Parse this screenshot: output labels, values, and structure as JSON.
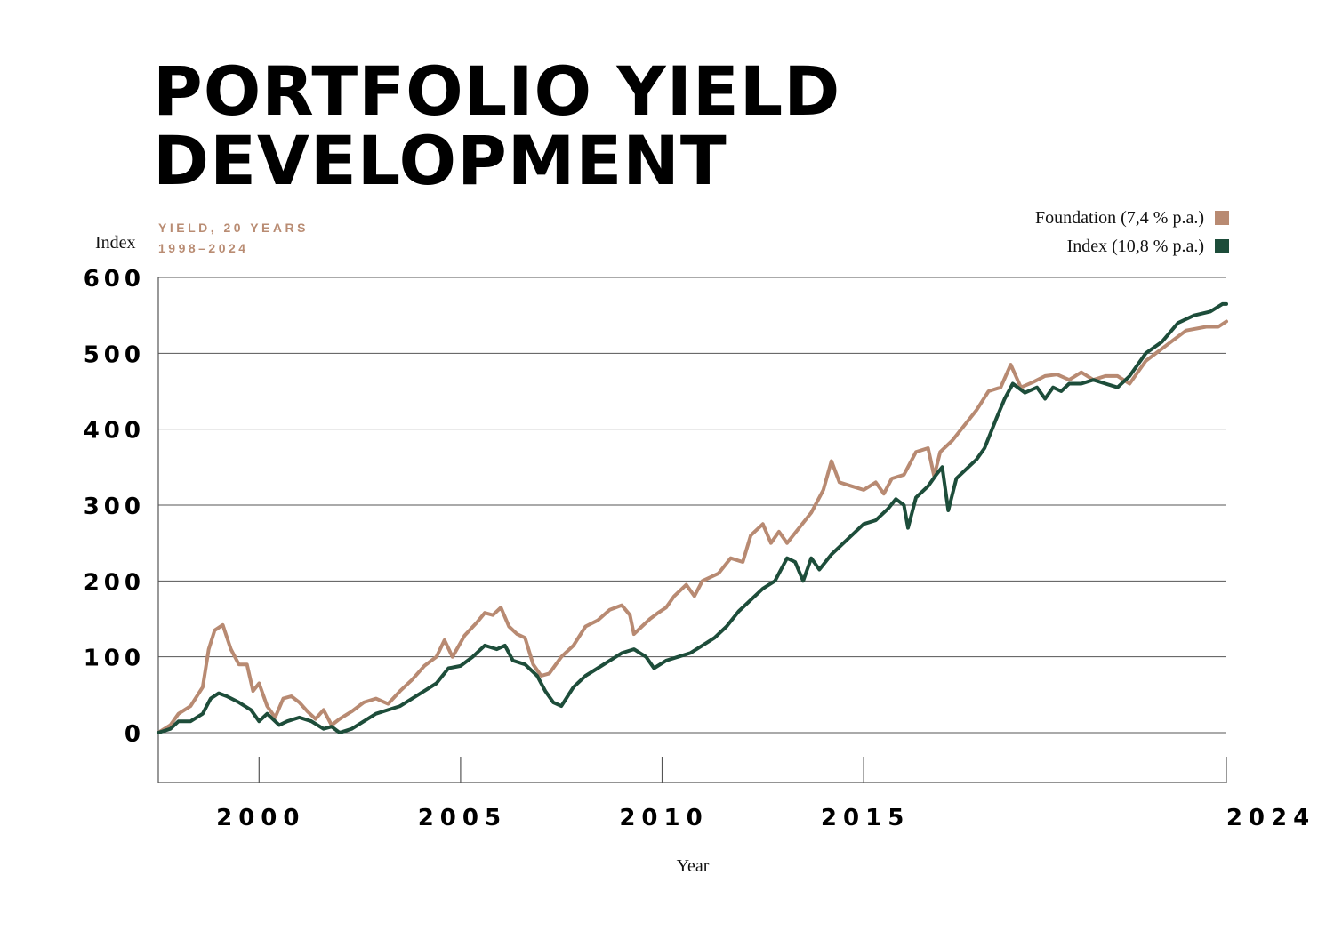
{
  "header": {
    "title_line1": "PORTFOLIO YIELD",
    "title_line2": "DEVELOPMENT",
    "subtitle_line1": "YIELD, 20 YEARS",
    "subtitle_line2": "1998–2024"
  },
  "colors": {
    "foundation": "#b88a72",
    "index": "#1d4d3a",
    "accent": "#b98c73"
  },
  "chart_data": {
    "type": "line",
    "title": "PORTFOLIO YIELD DEVELOPMENT",
    "subtitle": "YIELD, 20 YEARS 1998–2024",
    "ylabel": "Index",
    "xlabel": "Year",
    "ylim": [
      0,
      600
    ],
    "xlim": [
      1997.5,
      2024
    ],
    "yticks": [
      0,
      100,
      200,
      300,
      400,
      500,
      600
    ],
    "xticks": [
      2000,
      2005,
      2010,
      2015,
      2024
    ],
    "grid": true,
    "legend_position": "top-right",
    "series": [
      {
        "name": "Foundation (7,4 % p.a.)",
        "color": "#b88a72",
        "points": [
          [
            1997.5,
            0
          ],
          [
            1997.8,
            10
          ],
          [
            1998.0,
            25
          ],
          [
            1998.3,
            35
          ],
          [
            1998.6,
            60
          ],
          [
            1998.75,
            110
          ],
          [
            1998.9,
            135
          ],
          [
            1999.1,
            142
          ],
          [
            1999.3,
            110
          ],
          [
            1999.5,
            90
          ],
          [
            1999.7,
            90
          ],
          [
            1999.85,
            55
          ],
          [
            2000.0,
            65
          ],
          [
            2000.2,
            35
          ],
          [
            2000.4,
            20
          ],
          [
            2000.6,
            45
          ],
          [
            2000.8,
            48
          ],
          [
            2001.0,
            40
          ],
          [
            2001.2,
            28
          ],
          [
            2001.4,
            18
          ],
          [
            2001.6,
            30
          ],
          [
            2001.8,
            10
          ],
          [
            2002.0,
            18
          ],
          [
            2002.3,
            28
          ],
          [
            2002.6,
            40
          ],
          [
            2002.9,
            45
          ],
          [
            2003.2,
            38
          ],
          [
            2003.5,
            55
          ],
          [
            2003.8,
            70
          ],
          [
            2004.1,
            88
          ],
          [
            2004.4,
            100
          ],
          [
            2004.6,
            122
          ],
          [
            2004.8,
            100
          ],
          [
            2005.1,
            128
          ],
          [
            2005.4,
            145
          ],
          [
            2005.6,
            158
          ],
          [
            2005.8,
            155
          ],
          [
            2006.0,
            165
          ],
          [
            2006.2,
            140
          ],
          [
            2006.4,
            130
          ],
          [
            2006.6,
            125
          ],
          [
            2006.8,
            90
          ],
          [
            2007.0,
            75
          ],
          [
            2007.2,
            78
          ],
          [
            2007.5,
            100
          ],
          [
            2007.8,
            115
          ],
          [
            2008.1,
            140
          ],
          [
            2008.4,
            148
          ],
          [
            2008.7,
            162
          ],
          [
            2009.0,
            168
          ],
          [
            2009.2,
            155
          ],
          [
            2009.3,
            130
          ],
          [
            2009.5,
            140
          ],
          [
            2009.7,
            150
          ],
          [
            2009.9,
            158
          ],
          [
            2010.1,
            165
          ],
          [
            2010.3,
            180
          ],
          [
            2010.6,
            195
          ],
          [
            2010.8,
            180
          ],
          [
            2011.0,
            200
          ],
          [
            2011.2,
            205
          ],
          [
            2011.4,
            210
          ],
          [
            2011.7,
            230
          ],
          [
            2012.0,
            225
          ],
          [
            2012.2,
            260
          ],
          [
            2012.5,
            275
          ],
          [
            2012.7,
            250
          ],
          [
            2012.9,
            265
          ],
          [
            2013.1,
            250
          ],
          [
            2013.4,
            270
          ],
          [
            2013.7,
            290
          ],
          [
            2014.0,
            320
          ],
          [
            2014.2,
            358
          ],
          [
            2014.4,
            330
          ],
          [
            2014.7,
            325
          ],
          [
            2015.0,
            320
          ],
          [
            2015.3,
            330
          ],
          [
            2015.5,
            315
          ],
          [
            2015.7,
            335
          ],
          [
            2016.0,
            340
          ],
          [
            2016.3,
            370
          ],
          [
            2016.6,
            375
          ],
          [
            2016.75,
            338
          ],
          [
            2016.9,
            370
          ],
          [
            2017.2,
            385
          ],
          [
            2017.5,
            405
          ],
          [
            2017.8,
            425
          ],
          [
            2018.1,
            450
          ],
          [
            2018.4,
            455
          ],
          [
            2018.65,
            485
          ],
          [
            2018.9,
            455
          ],
          [
            2019.2,
            462
          ],
          [
            2019.5,
            470
          ],
          [
            2019.8,
            472
          ],
          [
            2020.1,
            465
          ],
          [
            2020.4,
            475
          ],
          [
            2020.7,
            465
          ],
          [
            2021.0,
            470
          ],
          [
            2021.3,
            470
          ],
          [
            2021.6,
            460
          ],
          [
            2022.0,
            490
          ],
          [
            2022.5,
            510
          ],
          [
            2023.0,
            530
          ],
          [
            2023.5,
            535
          ],
          [
            2023.8,
            535
          ],
          [
            2024.0,
            542
          ]
        ]
      },
      {
        "name": "Index (10,8 % p.a.)",
        "color": "#1d4d3a",
        "points": [
          [
            1997.5,
            0
          ],
          [
            1997.8,
            5
          ],
          [
            1998.0,
            15
          ],
          [
            1998.3,
            15
          ],
          [
            1998.6,
            25
          ],
          [
            1998.8,
            45
          ],
          [
            1999.0,
            52
          ],
          [
            1999.2,
            48
          ],
          [
            1999.5,
            40
          ],
          [
            1999.8,
            30
          ],
          [
            2000.0,
            15
          ],
          [
            2000.2,
            25
          ],
          [
            2000.5,
            10
          ],
          [
            2000.7,
            15
          ],
          [
            2001.0,
            20
          ],
          [
            2001.3,
            15
          ],
          [
            2001.6,
            5
          ],
          [
            2001.8,
            8
          ],
          [
            2002.0,
            0
          ],
          [
            2002.3,
            5
          ],
          [
            2002.6,
            15
          ],
          [
            2002.9,
            25
          ],
          [
            2003.2,
            30
          ],
          [
            2003.5,
            35
          ],
          [
            2003.8,
            45
          ],
          [
            2004.1,
            55
          ],
          [
            2004.4,
            65
          ],
          [
            2004.7,
            85
          ],
          [
            2005.0,
            88
          ],
          [
            2005.3,
            100
          ],
          [
            2005.6,
            115
          ],
          [
            2005.9,
            110
          ],
          [
            2006.1,
            115
          ],
          [
            2006.3,
            95
          ],
          [
            2006.6,
            90
          ],
          [
            2006.9,
            75
          ],
          [
            2007.1,
            55
          ],
          [
            2007.3,
            40
          ],
          [
            2007.5,
            35
          ],
          [
            2007.8,
            60
          ],
          [
            2008.1,
            75
          ],
          [
            2008.4,
            85
          ],
          [
            2008.7,
            95
          ],
          [
            2009.0,
            105
          ],
          [
            2009.3,
            110
          ],
          [
            2009.6,
            100
          ],
          [
            2009.8,
            85
          ],
          [
            2010.1,
            95
          ],
          [
            2010.4,
            100
          ],
          [
            2010.7,
            105
          ],
          [
            2011.0,
            115
          ],
          [
            2011.3,
            125
          ],
          [
            2011.6,
            140
          ],
          [
            2011.9,
            160
          ],
          [
            2012.2,
            175
          ],
          [
            2012.5,
            190
          ],
          [
            2012.8,
            200
          ],
          [
            2013.1,
            230
          ],
          [
            2013.3,
            225
          ],
          [
            2013.5,
            200
          ],
          [
            2013.7,
            230
          ],
          [
            2013.9,
            215
          ],
          [
            2014.2,
            235
          ],
          [
            2014.5,
            250
          ],
          [
            2014.8,
            265
          ],
          [
            2015.0,
            275
          ],
          [
            2015.3,
            280
          ],
          [
            2015.6,
            295
          ],
          [
            2015.8,
            308
          ],
          [
            2016.0,
            300
          ],
          [
            2016.1,
            270
          ],
          [
            2016.3,
            310
          ],
          [
            2016.6,
            325
          ],
          [
            2016.8,
            340
          ],
          [
            2016.95,
            350
          ],
          [
            2017.1,
            293
          ],
          [
            2017.3,
            335
          ],
          [
            2017.6,
            350
          ],
          [
            2017.8,
            360
          ],
          [
            2018.0,
            375
          ],
          [
            2018.3,
            415
          ],
          [
            2018.5,
            440
          ],
          [
            2018.7,
            460
          ],
          [
            2019.0,
            448
          ],
          [
            2019.3,
            455
          ],
          [
            2019.5,
            440
          ],
          [
            2019.7,
            455
          ],
          [
            2019.9,
            450
          ],
          [
            2020.1,
            460
          ],
          [
            2020.4,
            460
          ],
          [
            2020.7,
            465
          ],
          [
            2021.0,
            460
          ],
          [
            2021.3,
            455
          ],
          [
            2021.6,
            470
          ],
          [
            2022.0,
            500
          ],
          [
            2022.4,
            515
          ],
          [
            2022.8,
            540
          ],
          [
            2023.2,
            550
          ],
          [
            2023.6,
            555
          ],
          [
            2023.9,
            565
          ],
          [
            2024.0,
            565
          ]
        ]
      }
    ]
  }
}
